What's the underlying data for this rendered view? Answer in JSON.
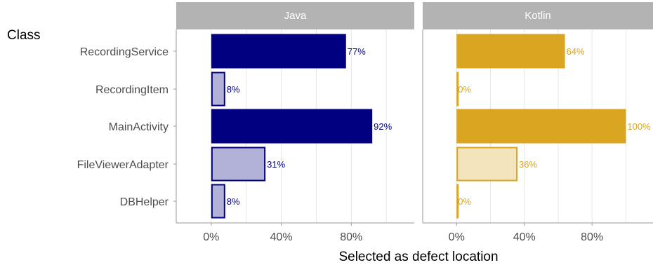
{
  "chart_data": {
    "type": "bar",
    "orientation": "horizontal",
    "facets": [
      "Java",
      "Kotlin"
    ],
    "categories": [
      "RecordingService",
      "RecordingItem",
      "MainActivity",
      "FileViewerAdapter",
      "DBHelper"
    ],
    "series": [
      {
        "name": "Java",
        "values": [
          77,
          8,
          92,
          31,
          8
        ],
        "labels": [
          "77%",
          "8%",
          "92%",
          "31%",
          "8%"
        ],
        "highlighted": [
          true,
          false,
          true,
          false,
          false
        ]
      },
      {
        "name": "Kotlin",
        "values": [
          64,
          0,
          100,
          36,
          0
        ],
        "labels": [
          "64%",
          "0%",
          "100%",
          "36%",
          "0%"
        ],
        "highlighted": [
          true,
          false,
          true,
          false,
          false
        ]
      }
    ],
    "colors": {
      "Java": "#000080",
      "Java_light": "#b2b2d9",
      "Kotlin": "#daa520",
      "Kotlin_light": "#f4e4bc",
      "strip": "#b3b3b3",
      "grid": "#e6e6e6"
    },
    "x_ticks": [
      0,
      40,
      80
    ],
    "x_tick_labels": [
      "0%",
      "40%",
      "80%"
    ],
    "xlim": [
      -20,
      116
    ],
    "xlabel": "Selected as defect location",
    "ylabel": "Class",
    "grid": true
  }
}
